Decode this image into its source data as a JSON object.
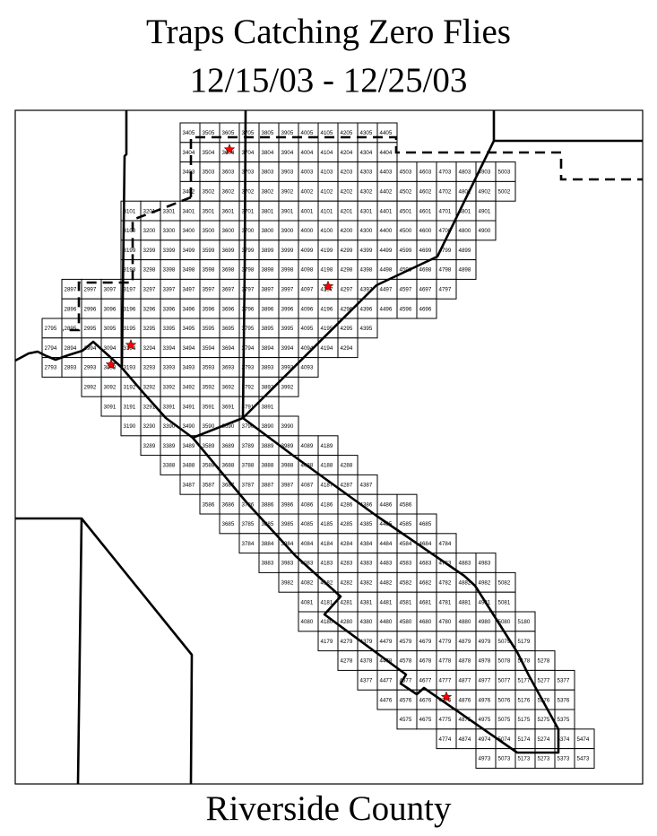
{
  "map": {
    "title_line1": "Traps Catching Zero Flies",
    "title_line2": "12/15/03 - 12/25/03",
    "county_label": "Riverside County",
    "star_color": "#ff0000",
    "star_icon": "red-star-trap-marker",
    "trap_stars": [
      "3604",
      "4197",
      "3194",
      "3093",
      "4776"
    ],
    "grid_rows": [
      {
        "row": "05",
        "from": 34,
        "to": 44
      },
      {
        "row": "04",
        "from": 34,
        "to": 44
      },
      {
        "row": "03",
        "from": 34,
        "to": 50
      },
      {
        "row": "02",
        "from": 34,
        "to": 50
      },
      {
        "row": "01",
        "from": 31,
        "to": 49
      },
      {
        "row": "00",
        "from": 31,
        "to": 49
      },
      {
        "row": "99",
        "from": 31,
        "to": 48
      },
      {
        "row": "98",
        "from": 31,
        "to": 48
      },
      {
        "row": "97",
        "from": 28,
        "to": 47
      },
      {
        "row": "96",
        "from": 28,
        "to": 46
      },
      {
        "row": "95",
        "from": 27,
        "to": 43
      },
      {
        "row": "94",
        "from": 27,
        "to": 42
      },
      {
        "row": "93",
        "from": 27,
        "to": 40
      },
      {
        "row": "92",
        "from": 29,
        "to": 39
      },
      {
        "row": "91",
        "from": 30,
        "to": 38
      },
      {
        "row": "90",
        "from": 31,
        "to": 39
      },
      {
        "row": "89",
        "from": 32,
        "to": 41
      },
      {
        "row": "88",
        "from": 33,
        "to": 42
      },
      {
        "row": "87",
        "from": 34,
        "to": 43
      },
      {
        "row": "86",
        "from": 35,
        "to": 45
      },
      {
        "row": "85",
        "from": 36,
        "to": 46
      },
      {
        "row": "84",
        "from": 37,
        "to": 47
      },
      {
        "row": "83",
        "from": 38,
        "to": 49
      },
      {
        "row": "82",
        "from": 39,
        "to": 50
      },
      {
        "row": "81",
        "from": 40,
        "to": 50
      },
      {
        "row": "80",
        "from": 40,
        "to": 51
      },
      {
        "row": "79",
        "from": 41,
        "to": 51
      },
      {
        "row": "78",
        "from": 42,
        "to": 52
      },
      {
        "row": "77",
        "from": 43,
        "to": 53
      },
      {
        "row": "76",
        "from": 44,
        "to": 53
      },
      {
        "row": "75",
        "from": 45,
        "to": 53
      },
      {
        "row": "74",
        "from": 47,
        "to": 54
      },
      {
        "row": "73",
        "from": 49,
        "to": 54
      }
    ]
  }
}
